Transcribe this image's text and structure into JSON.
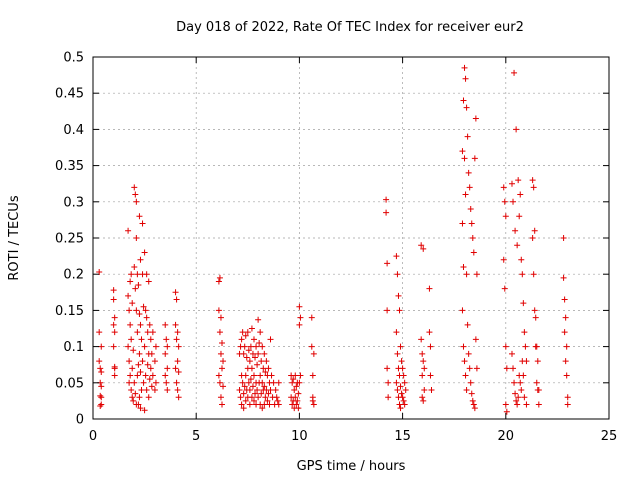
{
  "chart_data": {
    "type": "scatter",
    "title": "Day 018 of 2022, Rate Of TEC Index for receiver eur2",
    "xlabel": "GPS time / hours",
    "ylabel": "ROTI / TECUs",
    "xlim": [
      0,
      25
    ],
    "ylim": [
      0,
      0.5
    ],
    "xticks": [
      0,
      5,
      10,
      15,
      20,
      25
    ],
    "xtick_labels": [
      "0",
      "5",
      "10",
      "15",
      "20",
      "25"
    ],
    "yticks": [
      0,
      0.05,
      0.1,
      0.15,
      0.2,
      0.25,
      0.3,
      0.35,
      0.4,
      0.45,
      0.5
    ],
    "ytick_labels": [
      "0",
      "0.05",
      "0.1",
      "0.15",
      "0.2",
      "0.25",
      "0.3",
      "0.35",
      "0.4",
      "0.45",
      "0.5"
    ],
    "grid": true,
    "marker": "+",
    "color": "#e00000",
    "series": [
      {
        "name": "ROTI",
        "x": [
          0.3,
          0.3,
          0.3,
          0.35,
          0.35,
          0.35,
          0.35,
          0.4,
          0.4,
          0.4,
          0.4,
          0.4,
          1.0,
          1.0,
          1.0,
          1.0,
          1.05,
          1.05,
          1.05,
          1.05,
          1.05,
          1.7,
          1.7,
          1.7,
          1.75,
          1.75,
          1.75,
          1.8,
          1.8,
          1.8,
          1.85,
          1.85,
          1.85,
          1.9,
          1.9,
          1.9,
          1.95,
          1.95,
          2.0,
          2.0,
          2.0,
          2.05,
          2.05,
          2.05,
          2.1,
          2.1,
          2.1,
          2.1,
          2.15,
          2.15,
          2.15,
          2.2,
          2.2,
          2.2,
          2.25,
          2.25,
          2.25,
          2.25,
          2.3,
          2.3,
          2.3,
          2.3,
          2.35,
          2.35,
          2.4,
          2.4,
          2.4,
          2.45,
          2.45,
          2.5,
          2.5,
          2.5,
          2.55,
          2.55,
          2.6,
          2.6,
          2.6,
          2.65,
          2.65,
          2.7,
          2.7,
          2.7,
          2.75,
          2.75,
          2.8,
          2.8,
          2.85,
          2.85,
          2.9,
          2.9,
          3.0,
          3.0,
          3.05,
          3.05,
          3.5,
          3.5,
          3.5,
          3.55,
          3.55,
          3.6,
          3.6,
          3.6,
          4.0,
          4.0,
          4.0,
          4.05,
          4.05,
          4.05,
          4.1,
          4.1,
          4.1,
          4.15,
          4.15,
          4.15,
          6.1,
          6.1,
          6.1,
          6.15,
          6.15,
          6.15,
          6.2,
          6.2,
          6.2,
          6.25,
          6.25,
          6.25,
          6.3,
          6.3,
          7.1,
          7.1,
          7.15,
          7.15,
          7.2,
          7.2,
          7.2,
          7.25,
          7.25,
          7.3,
          7.3,
          7.3,
          7.35,
          7.35,
          7.4,
          7.4,
          7.4,
          7.45,
          7.45,
          7.5,
          7.5,
          7.5,
          7.55,
          7.55,
          7.6,
          7.6,
          7.6,
          7.65,
          7.65,
          7.7,
          7.7,
          7.7,
          7.75,
          7.75,
          7.8,
          7.8,
          7.8,
          7.85,
          7.85,
          7.9,
          7.9,
          7.9,
          7.95,
          7.95,
          8.0,
          8.0,
          8.0,
          8.05,
          8.05,
          8.1,
          8.1,
          8.1,
          8.15,
          8.15,
          8.2,
          8.2,
          8.2,
          8.25,
          8.25,
          8.3,
          8.3,
          8.3,
          8.35,
          8.35,
          8.4,
          8.4,
          8.45,
          8.45,
          8.5,
          8.5,
          8.55,
          8.55,
          8.6,
          8.6,
          8.65,
          8.7,
          8.75,
          8.8,
          8.85,
          8.9,
          8.95,
          9.0,
          9.0,
          9.6,
          9.6,
          9.65,
          9.65,
          9.7,
          9.7,
          9.75,
          9.75,
          9.8,
          9.8,
          9.85,
          9.85,
          9.9,
          9.9,
          9.95,
          9.95,
          10.0,
          10.0,
          10.0,
          10.05,
          10.05,
          10.6,
          10.6,
          10.65,
          10.65,
          10.65,
          10.7,
          10.7,
          14.2,
          14.2,
          14.25,
          14.25,
          14.25,
          14.3,
          14.3,
          14.7,
          14.7,
          14.7,
          14.75,
          14.75,
          14.75,
          14.8,
          14.8,
          14.8,
          14.85,
          14.85,
          14.85,
          14.9,
          14.9,
          14.9,
          14.95,
          14.95,
          15.0,
          15.0,
          15.05,
          15.05,
          15.1,
          15.1,
          15.15,
          15.9,
          15.9,
          15.95,
          15.95,
          15.95,
          16.0,
          16.0,
          16.0,
          16.05,
          16.05,
          16.3,
          16.3,
          16.35,
          16.35,
          16.4,
          17.9,
          17.9,
          17.9,
          17.95,
          17.95,
          17.95,
          18.0,
          18.0,
          18.0,
          18.05,
          18.05,
          18.05,
          18.1,
          18.1,
          18.1,
          18.15,
          18.15,
          18.2,
          18.2,
          18.25,
          18.25,
          18.3,
          18.3,
          18.35,
          18.35,
          18.4,
          18.4,
          18.45,
          18.45,
          18.5,
          18.5,
          18.55,
          18.55,
          18.6,
          18.6,
          19.9,
          19.9,
          19.95,
          19.95,
          20.0,
          20.0,
          20.0,
          20.05,
          20.05,
          20.3,
          20.3,
          20.35,
          20.35,
          20.4,
          20.4,
          20.45,
          20.45,
          20.5,
          20.5,
          20.55,
          20.55,
          20.6,
          20.6,
          20.65,
          20.65,
          20.7,
          20.7,
          20.75,
          20.75,
          20.8,
          20.8,
          20.85,
          20.85,
          20.9,
          20.9,
          20.95,
          21.0,
          21.0,
          21.3,
          21.3,
          21.35,
          21.35,
          21.4,
          21.4,
          21.45,
          21.45,
          21.5,
          21.5,
          21.55,
          21.55,
          21.6,
          21.6,
          22.8,
          22.8,
          22.85,
          22.85,
          22.9,
          22.9,
          22.95,
          22.95,
          23.0,
          23.0
        ],
        "y": [
          0.203,
          0.12,
          0.08,
          0.07,
          0.05,
          0.032,
          0.018,
          0.065,
          0.045,
          0.03,
          0.02,
          0.1,
          0.178,
          0.165,
          0.13,
          0.1,
          0.072,
          0.06,
          0.12,
          0.14,
          0.07,
          0.26,
          0.17,
          0.1,
          0.15,
          0.08,
          0.05,
          0.19,
          0.13,
          0.06,
          0.2,
          0.11,
          0.04,
          0.16,
          0.07,
          0.03,
          0.095,
          0.025,
          0.32,
          0.21,
          0.05,
          0.31,
          0.18,
          0.035,
          0.3,
          0.25,
          0.15,
          0.02,
          0.2,
          0.12,
          0.06,
          0.185,
          0.075,
          0.02,
          0.28,
          0.145,
          0.09,
          0.03,
          0.22,
          0.13,
          0.065,
          0.015,
          0.11,
          0.04,
          0.27,
          0.2,
          0.08,
          0.155,
          0.05,
          0.23,
          0.1,
          0.012,
          0.15,
          0.06,
          0.2,
          0.14,
          0.04,
          0.12,
          0.075,
          0.19,
          0.09,
          0.03,
          0.13,
          0.055,
          0.11,
          0.07,
          0.09,
          0.045,
          0.12,
          0.06,
          0.08,
          0.04,
          0.1,
          0.05,
          0.13,
          0.09,
          0.06,
          0.11,
          0.05,
          0.1,
          0.07,
          0.04,
          0.175,
          0.13,
          0.07,
          0.165,
          0.11,
          0.05,
          0.12,
          0.08,
          0.04,
          0.1,
          0.065,
          0.03,
          0.19,
          0.15,
          0.06,
          0.195,
          0.12,
          0.05,
          0.14,
          0.09,
          0.03,
          0.105,
          0.07,
          0.02,
          0.08,
          0.045,
          0.09,
          0.04,
          0.1,
          0.03,
          0.11,
          0.06,
          0.02,
          0.12,
          0.05,
          0.09,
          0.035,
          0.015,
          0.1,
          0.045,
          0.115,
          0.06,
          0.025,
          0.085,
          0.04,
          0.12,
          0.07,
          0.03,
          0.095,
          0.05,
          0.08,
          0.04,
          0.02,
          0.1,
          0.055,
          0.125,
          0.07,
          0.03,
          0.09,
          0.045,
          0.11,
          0.06,
          0.025,
          0.085,
          0.035,
          0.1,
          0.05,
          0.02,
          0.075,
          0.04,
          0.137,
          0.09,
          0.03,
          0.105,
          0.05,
          0.12,
          0.06,
          0.02,
          0.08,
          0.035,
          0.1,
          0.05,
          0.015,
          0.07,
          0.04,
          0.09,
          0.045,
          0.02,
          0.065,
          0.03,
          0.08,
          0.04,
          0.06,
          0.025,
          0.07,
          0.035,
          0.05,
          0.02,
          0.11,
          0.04,
          0.06,
          0.03,
          0.05,
          0.02,
          0.04,
          0.03,
          0.025,
          0.05,
          0.02,
          0.06,
          0.03,
          0.05,
          0.02,
          0.055,
          0.025,
          0.04,
          0.015,
          0.06,
          0.03,
          0.045,
          0.02,
          0.05,
          0.025,
          0.035,
          0.015,
          0.155,
          0.13,
          0.05,
          0.14,
          0.06,
          0.14,
          0.1,
          0.06,
          0.03,
          0.025,
          0.09,
          0.02,
          0.303,
          0.285,
          0.215,
          0.15,
          0.07,
          0.05,
          0.03,
          0.225,
          0.12,
          0.05,
          0.2,
          0.09,
          0.04,
          0.17,
          0.07,
          0.03,
          0.15,
          0.06,
          0.02,
          0.1,
          0.045,
          0.015,
          0.08,
          0.035,
          0.07,
          0.03,
          0.06,
          0.025,
          0.05,
          0.02,
          0.04,
          0.24,
          0.11,
          0.09,
          0.06,
          0.03,
          0.235,
          0.08,
          0.025,
          0.07,
          0.04,
          0.18,
          0.12,
          0.1,
          0.06,
          0.04,
          0.37,
          0.27,
          0.15,
          0.44,
          0.21,
          0.1,
          0.485,
          0.36,
          0.08,
          0.47,
          0.31,
          0.06,
          0.43,
          0.2,
          0.04,
          0.39,
          0.13,
          0.34,
          0.09,
          0.32,
          0.07,
          0.29,
          0.05,
          0.27,
          0.035,
          0.25,
          0.025,
          0.23,
          0.02,
          0.36,
          0.015,
          0.415,
          0.11,
          0.2,
          0.07,
          0.32,
          0.22,
          0.3,
          0.18,
          0.28,
          0.1,
          0.02,
          0.07,
          0.01,
          0.325,
          0.09,
          0.3,
          0.07,
          0.478,
          0.05,
          0.26,
          0.035,
          0.4,
          0.025,
          0.24,
          0.02,
          0.33,
          0.03,
          0.28,
          0.06,
          0.31,
          0.05,
          0.22,
          0.04,
          0.2,
          0.08,
          0.16,
          0.06,
          0.12,
          0.03,
          0.1,
          0.08,
          0.02,
          0.33,
          0.25,
          0.32,
          0.2,
          0.26,
          0.15,
          0.14,
          0.1,
          0.1,
          0.05,
          0.08,
          0.04,
          0.04,
          0.02,
          0.25,
          0.195,
          0.165,
          0.12,
          0.14,
          0.08,
          0.1,
          0.06,
          0.03,
          0.02
        ]
      }
    ]
  }
}
